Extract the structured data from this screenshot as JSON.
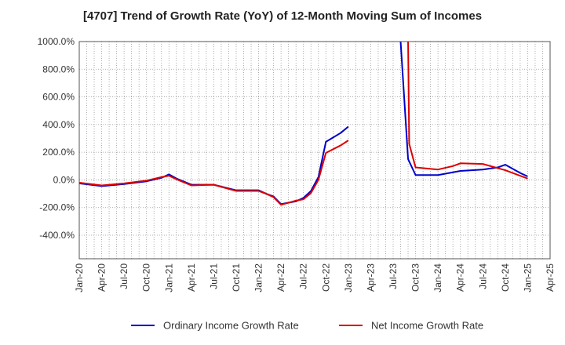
{
  "chart_data": {
    "type": "line",
    "title": "[4707]  Trend of Growth Rate (YoY) of 12-Month Moving Sum of Incomes",
    "y_ticks": [
      {
        "value": 1000,
        "label": "1000.0%"
      },
      {
        "value": 800,
        "label": "800.0%"
      },
      {
        "value": 600,
        "label": "600.0%"
      },
      {
        "value": 400,
        "label": "400.0%"
      },
      {
        "value": 200,
        "label": "200.0%"
      },
      {
        "value": 0,
        "label": "0.0%"
      },
      {
        "value": -200,
        "label": "-200.0%"
      },
      {
        "value": -400,
        "label": "-400.0%"
      }
    ],
    "ylim": [
      -570,
      1000
    ],
    "x_ticks": [
      "Jan-20",
      "Apr-20",
      "Jul-20",
      "Oct-20",
      "Jan-21",
      "Apr-21",
      "Jul-21",
      "Oct-21",
      "Jan-22",
      "Apr-22",
      "Jul-22",
      "Oct-22",
      "Jan-23",
      "Apr-23",
      "Jul-23",
      "Oct-23",
      "Jan-24",
      "Apr-24",
      "Jul-24",
      "Oct-24",
      "Jan-25",
      "Apr-25"
    ],
    "x_month_range": [
      0,
      63
    ],
    "grid": true,
    "legend_position": "bottom",
    "series": [
      {
        "name": "Ordinary Income Growth Rate",
        "color": "#0000cc",
        "segments": [
          [
            {
              "m": 0,
              "y": -25
            },
            {
              "m": 3,
              "y": -45
            },
            {
              "m": 6,
              "y": -30
            },
            {
              "m": 9,
              "y": -10
            },
            {
              "m": 11,
              "y": 15
            },
            {
              "m": 12,
              "y": 40
            },
            {
              "m": 13,
              "y": 10
            },
            {
              "m": 15,
              "y": -35
            },
            {
              "m": 18,
              "y": -35
            },
            {
              "m": 21,
              "y": -75
            },
            {
              "m": 24,
              "y": -75
            },
            {
              "m": 25,
              "y": -100
            },
            {
              "m": 26,
              "y": -120
            },
            {
              "m": 27,
              "y": -175
            },
            {
              "m": 28,
              "y": -165
            },
            {
              "m": 29,
              "y": -155
            },
            {
              "m": 30,
              "y": -130
            },
            {
              "m": 31,
              "y": -80
            },
            {
              "m": 32,
              "y": 20
            },
            {
              "m": 33,
              "y": 275
            },
            {
              "m": 35,
              "y": 340
            },
            {
              "m": 36,
              "y": 385
            }
          ],
          [
            {
              "m": 43,
              "y": 1000
            },
            {
              "m": 44,
              "y": 150
            },
            {
              "m": 45,
              "y": 35
            },
            {
              "m": 48,
              "y": 35
            },
            {
              "m": 50,
              "y": 55
            },
            {
              "m": 51,
              "y": 65
            },
            {
              "m": 54,
              "y": 75
            },
            {
              "m": 56,
              "y": 90
            },
            {
              "m": 57,
              "y": 110
            },
            {
              "m": 59,
              "y": 50
            },
            {
              "m": 60,
              "y": 25
            }
          ]
        ]
      },
      {
        "name": "Net Income Growth Rate",
        "color": "#dd0000",
        "segments": [
          [
            {
              "m": 0,
              "y": -20
            },
            {
              "m": 3,
              "y": -40
            },
            {
              "m": 6,
              "y": -25
            },
            {
              "m": 9,
              "y": -5
            },
            {
              "m": 11,
              "y": 20
            },
            {
              "m": 12,
              "y": 30
            },
            {
              "m": 13,
              "y": 5
            },
            {
              "m": 15,
              "y": -40
            },
            {
              "m": 18,
              "y": -35
            },
            {
              "m": 21,
              "y": -80
            },
            {
              "m": 24,
              "y": -80
            },
            {
              "m": 25,
              "y": -100
            },
            {
              "m": 26,
              "y": -125
            },
            {
              "m": 27,
              "y": -180
            },
            {
              "m": 28,
              "y": -165
            },
            {
              "m": 29,
              "y": -150
            },
            {
              "m": 30,
              "y": -140
            },
            {
              "m": 31,
              "y": -95
            },
            {
              "m": 32,
              "y": 0
            },
            {
              "m": 33,
              "y": 195
            },
            {
              "m": 35,
              "y": 250
            },
            {
              "m": 36,
              "y": 285
            }
          ],
          [
            {
              "m": 44,
              "y": 1000
            },
            {
              "m": 44.15,
              "y": 260
            },
            {
              "m": 45,
              "y": 90
            },
            {
              "m": 48,
              "y": 75
            },
            {
              "m": 50,
              "y": 100
            },
            {
              "m": 51,
              "y": 120
            },
            {
              "m": 54,
              "y": 115
            },
            {
              "m": 57,
              "y": 70
            },
            {
              "m": 59,
              "y": 30
            },
            {
              "m": 60,
              "y": 10
            }
          ]
        ]
      }
    ]
  }
}
